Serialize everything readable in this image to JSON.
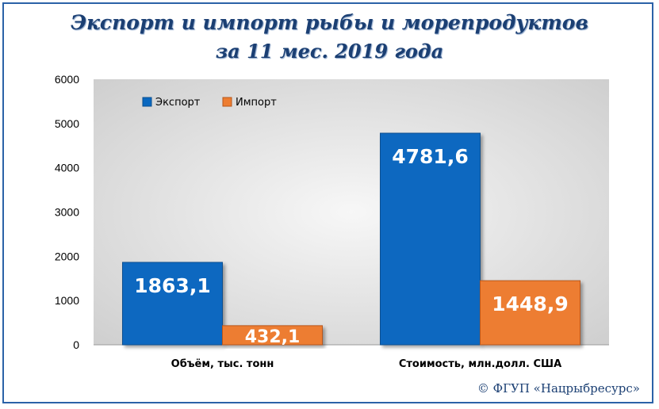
{
  "title_line1": "Экспорт и импорт рыбы и морепродуктов",
  "title_line2": "за 11 мес. 2019 года",
  "copyright": "© ФГУП «Нацрыбресурс»",
  "colors": {
    "export": "#0a68c0",
    "import": "#ed7d31",
    "title": "#1b3f73"
  },
  "chart_data": {
    "type": "bar",
    "categories": [
      "Объём, тыс. тонн",
      "Стоимость, млн.долл. США"
    ],
    "series": [
      {
        "name": "Экспорт",
        "values": [
          1863.1,
          4781.6
        ],
        "labels": [
          "1863,1",
          "4781,6"
        ]
      },
      {
        "name": "Импорт",
        "values": [
          432.1,
          1448.9
        ],
        "labels": [
          "432,1",
          "1448,9"
        ]
      }
    ],
    "yticks": [
      "0",
      "1000",
      "2000",
      "3000",
      "4000",
      "5000",
      "6000"
    ],
    "ylim": [
      0,
      6000
    ],
    "grid": false,
    "legend": "top-left"
  }
}
